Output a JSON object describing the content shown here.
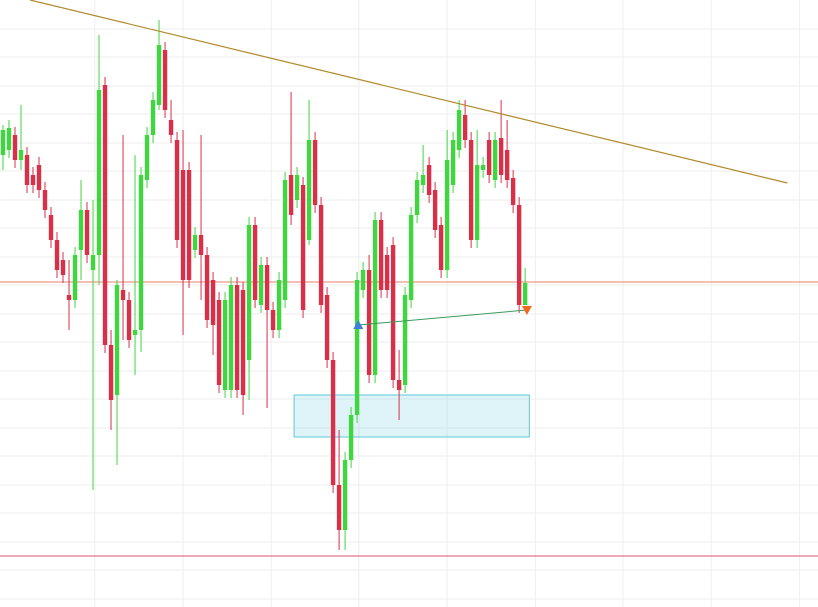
{
  "chart_data": {
    "type": "candlestick",
    "xlim": [
      -0.5,
      135.8
    ],
    "ylim": [
      0,
      607
    ],
    "grid": true,
    "xticks": [
      15.3,
      30,
      44.7,
      59.3,
      74,
      88.7,
      103.3,
      118,
      132.7
    ],
    "yticks": [
      578,
      550,
      521,
      493,
      464,
      436,
      407,
      379,
      350,
      322,
      293,
      265,
      236,
      208,
      179,
      151,
      122,
      94,
      65,
      37,
      8
    ],
    "up_color": "#3fd63f",
    "down_color": "#d9304a",
    "open": [
      452,
      457,
      472,
      447,
      452,
      432,
      442,
      417,
      392,
      367,
      347,
      312,
      307,
      357,
      397,
      337,
      352,
      522,
      262,
      212,
      317,
      307,
      272,
      277,
      427,
      472,
      502,
      557,
      487,
      467,
      437,
      437,
      357,
      372,
      352,
      327,
      307,
      217,
      217,
      322,
      317,
      247,
      382,
      302,
      342,
      297,
      277,
      307,
      432,
      407,
      422,
      367,
      467,
      402,
      312,
      247,
      122,
      77,
      147,
      192,
      317,
      337,
      232,
      387,
      352,
      362,
      227,
      222,
      307,
      392,
      422,
      442,
      417,
      382,
      337,
      422,
      457,
      492,
      467,
      367,
      437,
      467,
      427,
      469,
      457,
      429,
      402,
      302
    ],
    "high": [
      482,
      487,
      480,
      502,
      460,
      440,
      450,
      425,
      400,
      375,
      355,
      347,
      360,
      427,
      405,
      407,
      572,
      530,
      277,
      327,
      472,
      315,
      452,
      440,
      480,
      515,
      587,
      565,
      507,
      475,
      477,
      445,
      380,
      472,
      360,
      335,
      315,
      315,
      330,
      330,
      325,
      390,
      390,
      350,
      350,
      305,
      335,
      435,
      515,
      440,
      430,
      507,
      475,
      410,
      320,
      255,
      177,
      155,
      200,
      335,
      345,
      352,
      395,
      395,
      360,
      370,
      257,
      320,
      400,
      435,
      462,
      450,
      425,
      390,
      477,
      475,
      507,
      507,
      475,
      477,
      450,
      475,
      475,
      507,
      487,
      437,
      410,
      339
    ],
    "low": [
      437,
      449,
      439,
      437,
      414,
      414,
      409,
      389,
      359,
      329,
      324,
      277,
      299,
      327,
      344,
      117,
      322,
      254,
      177,
      142,
      267,
      259,
      232,
      255,
      419,
      464,
      497,
      489,
      464,
      359,
      272,
      319,
      349,
      307,
      279,
      252,
      214,
      209,
      209,
      209,
      192,
      207,
      299,
      294,
      199,
      269,
      269,
      299,
      382,
      399,
      289,
      362,
      394,
      294,
      239,
      114,
      57,
      57,
      139,
      184,
      309,
      224,
      224,
      309,
      309,
      219,
      187,
      214,
      299,
      384,
      414,
      404,
      369,
      329,
      329,
      414,
      449,
      459,
      359,
      359,
      429,
      424,
      419,
      424,
      419,
      394,
      294,
      302
    ],
    "close": [
      477,
      479,
      447,
      457,
      422,
      422,
      417,
      397,
      367,
      337,
      332,
      307,
      352,
      397,
      352,
      352,
      517,
      262,
      207,
      322,
      307,
      267,
      277,
      432,
      472,
      507,
      562,
      497,
      472,
      367,
      327,
      327,
      372,
      352,
      287,
      282,
      222,
      307,
      322,
      217,
      212,
      382,
      307,
      342,
      297,
      277,
      327,
      427,
      392,
      432,
      297,
      467,
      402,
      302,
      247,
      122,
      77,
      147,
      192,
      327,
      337,
      232,
      387,
      317,
      317,
      227,
      217,
      312,
      392,
      427,
      432,
      412,
      377,
      337,
      447,
      467,
      497,
      467,
      367,
      442,
      442,
      432,
      467,
      432,
      427,
      402,
      302,
      324
    ],
    "drawings": {
      "trend_line": {
        "x": [
          4.5,
          130.7
        ],
        "y": [
          607,
          424
        ],
        "color": "#b08a2a"
      },
      "level_lines": [
        {
          "y": 325,
          "color": "#e8806e"
        },
        {
          "y": 51,
          "color": "#e0506a"
        }
      ],
      "zone": {
        "x": [
          48.5,
          87.7
        ],
        "y": [
          212,
          170
        ],
        "color": "#5fc8dc"
      },
      "arrow": {
        "x": [
          59.2,
          87.3
        ],
        "y": [
          282,
          297
        ],
        "color": "#3c9a5a",
        "start_color": "#3f7fd8",
        "end_color": "#f06a1e"
      }
    }
  }
}
